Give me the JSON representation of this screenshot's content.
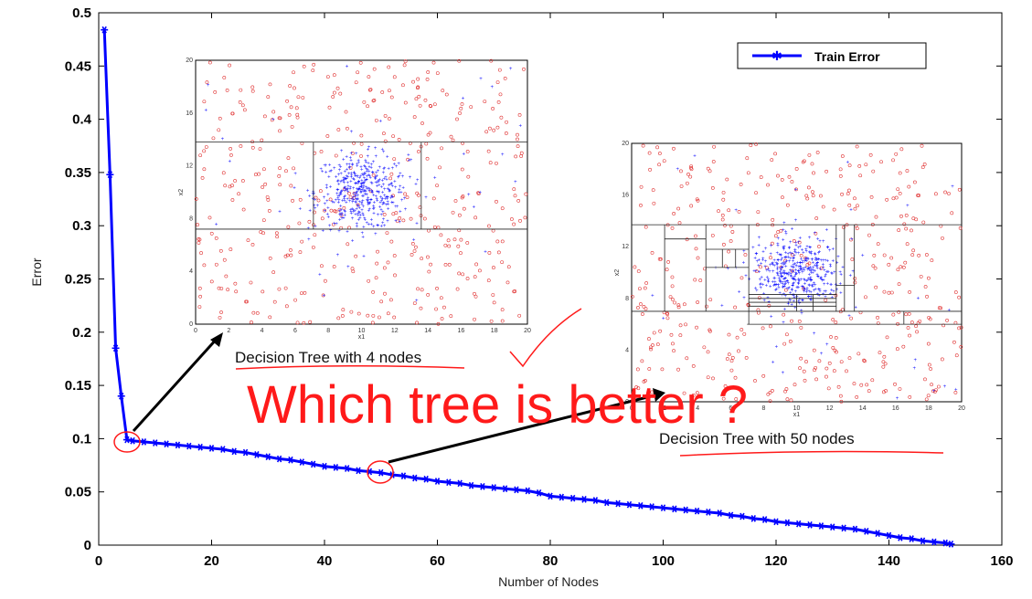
{
  "chart_data": {
    "type": "line",
    "title": "",
    "xlabel": "Number of Nodes",
    "ylabel": "Error",
    "xlim": [
      0,
      160
    ],
    "ylim": [
      0,
      0.5
    ],
    "x_ticks": [
      "0",
      "20",
      "40",
      "60",
      "80",
      "100",
      "120",
      "140",
      "160"
    ],
    "y_ticks": [
      "0",
      "0.05",
      "0.1",
      "0.15",
      "0.2",
      "0.25",
      "0.3",
      "0.35",
      "0.4",
      "0.45",
      "0.5"
    ],
    "grid": false,
    "legend_position": "top-right",
    "series": [
      {
        "name": "Train Error",
        "color": "#0000ff",
        "marker": "star",
        "x": [
          1,
          2,
          3,
          4,
          5,
          6,
          8,
          10,
          12,
          14,
          16,
          18,
          20,
          22,
          24,
          26,
          28,
          30,
          32,
          34,
          36,
          38,
          40,
          42,
          44,
          46,
          48,
          50,
          52,
          54,
          56,
          58,
          60,
          62,
          64,
          66,
          68,
          70,
          72,
          74,
          76,
          78,
          80,
          82,
          84,
          86,
          88,
          90,
          92,
          94,
          96,
          98,
          100,
          102,
          104,
          106,
          108,
          110,
          112,
          114,
          116,
          118,
          120,
          122,
          124,
          126,
          128,
          130,
          132,
          134,
          136,
          138,
          140,
          142,
          144,
          146,
          148,
          150,
          151
        ],
        "y": [
          0.484,
          0.348,
          0.185,
          0.14,
          0.099,
          0.098,
          0.097,
          0.096,
          0.095,
          0.094,
          0.093,
          0.092,
          0.091,
          0.09,
          0.088,
          0.087,
          0.085,
          0.083,
          0.081,
          0.08,
          0.078,
          0.076,
          0.074,
          0.073,
          0.072,
          0.07,
          0.069,
          0.068,
          0.066,
          0.065,
          0.063,
          0.062,
          0.06,
          0.059,
          0.058,
          0.056,
          0.055,
          0.054,
          0.053,
          0.052,
          0.051,
          0.049,
          0.046,
          0.045,
          0.044,
          0.043,
          0.042,
          0.04,
          0.039,
          0.038,
          0.037,
          0.036,
          0.035,
          0.034,
          0.033,
          0.032,
          0.031,
          0.03,
          0.028,
          0.027,
          0.025,
          0.024,
          0.022,
          0.021,
          0.02,
          0.019,
          0.018,
          0.017,
          0.016,
          0.015,
          0.013,
          0.011,
          0.009,
          0.007,
          0.006,
          0.004,
          0.003,
          0.002,
          0.001
        ]
      }
    ]
  },
  "annotations": {
    "tree4_label": "Decision Tree with 4 nodes",
    "tree50_label": "Decision Tree with 50 nodes",
    "question": "Which tree is better ?"
  },
  "insets": {
    "inset_small": {
      "xlabel": "x1",
      "ylabel": "x2",
      "ticks": [
        "0",
        "2",
        "4",
        "6",
        "8",
        "10",
        "12",
        "14",
        "16",
        "18",
        "20"
      ]
    },
    "inset_large": {
      "xlabel": "x1",
      "ylabel": "x2",
      "ticks": [
        "0",
        "2",
        "4",
        "6",
        "8",
        "10",
        "12",
        "14",
        "16",
        "18",
        "20"
      ]
    }
  },
  "colors": {
    "series": "#0000ff",
    "annotation_red": "#ff1a1a",
    "points_red": "#e03030",
    "points_blue": "#1a1aff"
  }
}
